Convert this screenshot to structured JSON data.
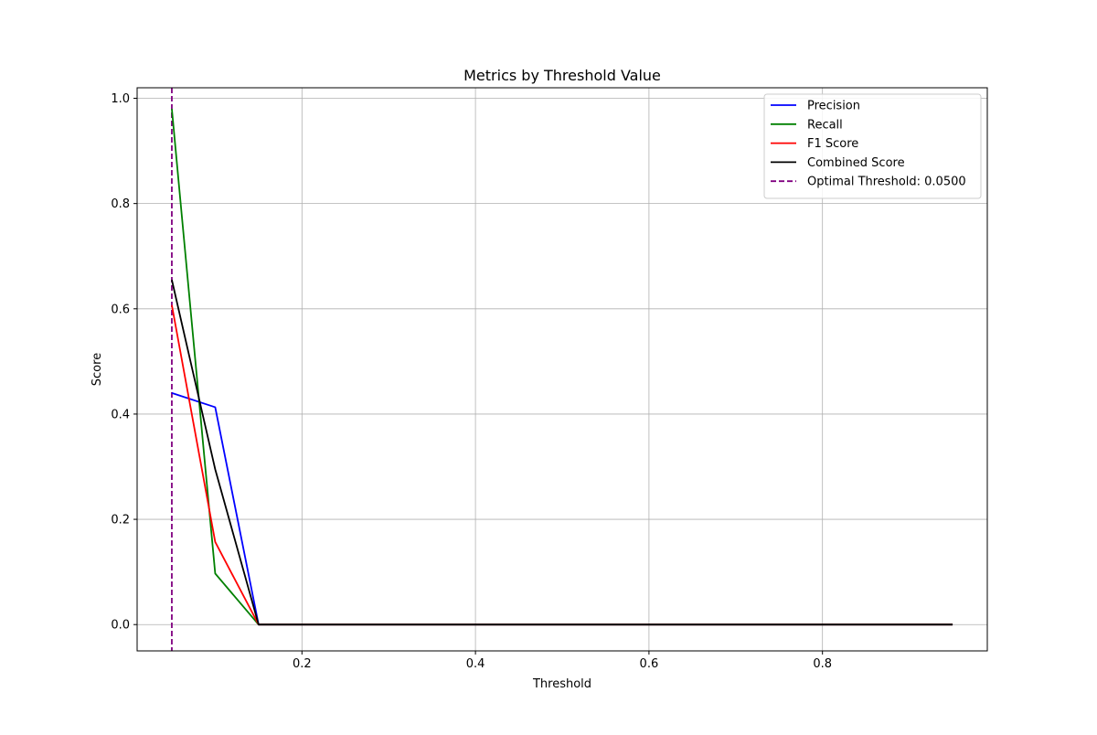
{
  "chart_data": {
    "type": "line",
    "title": "Metrics by Threshold Value",
    "xlabel": "Threshold",
    "ylabel": "Score",
    "xlim": [
      0.01,
      0.99
    ],
    "ylim": [
      -0.05,
      1.02
    ],
    "xticks": [
      0.2,
      0.4,
      0.6,
      0.8
    ],
    "yticks": [
      0.0,
      0.2,
      0.4,
      0.6,
      0.8,
      1.0
    ],
    "xtick_labels": [
      "0.2",
      "0.4",
      "0.6",
      "0.8"
    ],
    "ytick_labels": [
      "0.0",
      "0.2",
      "0.4",
      "0.6",
      "0.8",
      "1.0"
    ],
    "grid": true,
    "legend_position": "top-right",
    "x": [
      0.05,
      0.1,
      0.15,
      0.2,
      0.25,
      0.3,
      0.35,
      0.4,
      0.45,
      0.5,
      0.55,
      0.6,
      0.65,
      0.7,
      0.75,
      0.8,
      0.85,
      0.9,
      0.95
    ],
    "series": [
      {
        "name": "Precision",
        "color": "#0000ff",
        "style": "solid",
        "values": [
          0.44,
          0.413,
          0,
          0,
          0,
          0,
          0,
          0,
          0,
          0,
          0,
          0,
          0,
          0,
          0,
          0,
          0,
          0,
          0
        ]
      },
      {
        "name": "Recall",
        "color": "#008000",
        "style": "solid",
        "values": [
          0.98,
          0.097,
          0,
          0,
          0,
          0,
          0,
          0,
          0,
          0,
          0,
          0,
          0,
          0,
          0,
          0,
          0,
          0,
          0
        ]
      },
      {
        "name": "F1 Score",
        "color": "#ff0000",
        "style": "solid",
        "values": [
          0.607,
          0.157,
          0,
          0,
          0,
          0,
          0,
          0,
          0,
          0,
          0,
          0,
          0,
          0,
          0,
          0,
          0,
          0,
          0
        ]
      },
      {
        "name": "Combined Score",
        "color": "#000000",
        "style": "solid",
        "values": [
          0.655,
          0.295,
          0,
          0,
          0,
          0,
          0,
          0,
          0,
          0,
          0,
          0,
          0,
          0,
          0,
          0,
          0,
          0,
          0
        ]
      }
    ],
    "vlines": [
      {
        "name": "Optimal Threshold: 0.0500",
        "x": 0.05,
        "color": "#800080",
        "style": "dashed"
      }
    ]
  }
}
